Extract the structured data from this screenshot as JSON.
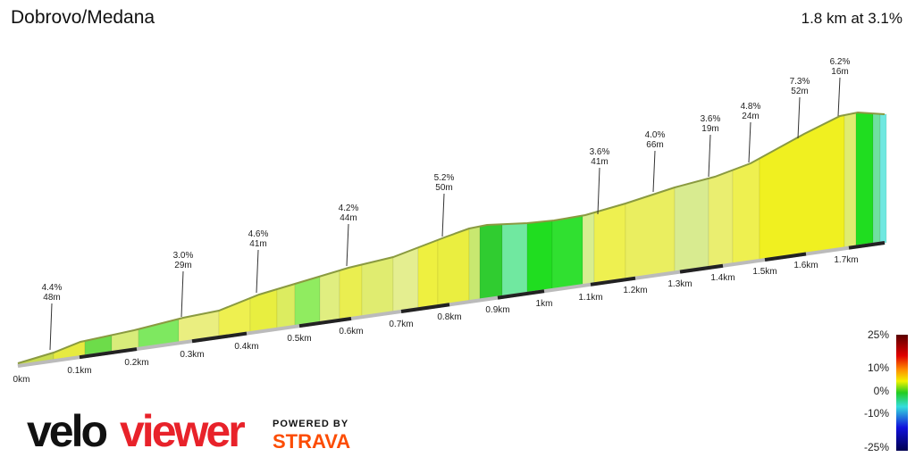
{
  "header": {
    "title": "Dobrovo/Medana",
    "summary": "1.8 km at 3.1%"
  },
  "annotations": [
    {
      "grade": "4.4%",
      "length": "48m"
    },
    {
      "grade": "3.0%",
      "length": "29m"
    },
    {
      "grade": "4.6%",
      "length": "41m"
    },
    {
      "grade": "4.2%",
      "length": "44m"
    },
    {
      "grade": "5.2%",
      "length": "50m"
    },
    {
      "grade": "3.6%",
      "length": "41m"
    },
    {
      "grade": "4.0%",
      "length": "66m"
    },
    {
      "grade": "3.6%",
      "length": "19m"
    },
    {
      "grade": "4.8%",
      "length": "24m"
    },
    {
      "grade": "7.3%",
      "length": "52m"
    },
    {
      "grade": "6.2%",
      "length": "16m"
    }
  ],
  "distance_labels": [
    "0km",
    "0.1km",
    "0.2km",
    "0.3km",
    "0.4km",
    "0.5km",
    "0.6km",
    "0.7km",
    "0.8km",
    "0.9km",
    "1km",
    "1.1km",
    "1.2km",
    "1.3km",
    "1.4km",
    "1.5km",
    "1.6km",
    "1.7km"
  ],
  "legend": {
    "labels": [
      "25%",
      "10%",
      "0%",
      "-10%",
      "-25%"
    ]
  },
  "branding": {
    "logo_parts": [
      "velo",
      "viewer"
    ],
    "powered_by": "POWERED BY",
    "partner": "STRAVA"
  }
}
